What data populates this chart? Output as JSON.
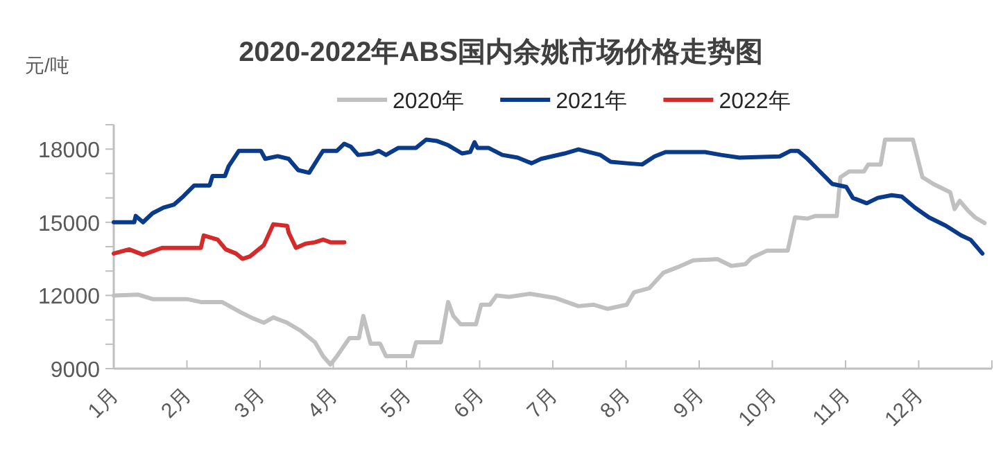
{
  "chart_data": {
    "type": "line",
    "title": "2020-2022年ABS国内余姚市场价格走势图",
    "ylabel": "元/吨",
    "legend": "top",
    "grid": false,
    "marker": "none",
    "line_style": "solid",
    "xlim": [
      1,
      13
    ],
    "xticks": [
      {
        "value": 1,
        "label": "1月"
      },
      {
        "value": 2,
        "label": "2月"
      },
      {
        "value": 3,
        "label": "3月"
      },
      {
        "value": 4,
        "label": "4月"
      },
      {
        "value": 5,
        "label": "5月"
      },
      {
        "value": 6,
        "label": "6月"
      },
      {
        "value": 7,
        "label": "7月"
      },
      {
        "value": 8,
        "label": "8月"
      },
      {
        "value": 9,
        "label": "9月"
      },
      {
        "value": 10,
        "label": "10月"
      },
      {
        "value": 11,
        "label": "11月"
      },
      {
        "value": 12,
        "label": "12月"
      },
      {
        "value": 13,
        "label": null
      }
    ],
    "ylim": [
      9000,
      19000
    ],
    "yticks": [
      9000,
      {
        "value": 10000,
        "label": null
      },
      {
        "value": 11000,
        "label": null
      },
      12000,
      {
        "value": 13000,
        "label": null
      },
      {
        "value": 14000,
        "label": null
      },
      15000,
      {
        "value": 16000,
        "label": null
      },
      {
        "value": 17000,
        "label": null
      },
      18000,
      {
        "value": 19000,
        "label": null
      }
    ],
    "series": [
      {
        "name": "2020年",
        "color": "#c0c0c0",
        "x": [
          1,
          1.34,
          1.53,
          2.0,
          2.19,
          2.48,
          2.72,
          2.91,
          3.05,
          3.18,
          3.37,
          3.56,
          3.75,
          3.86,
          3.96,
          4.05,
          4.22,
          4.35,
          4.41,
          4.51,
          4.64,
          4.72,
          5.08,
          5.13,
          5.47,
          5.57,
          5.64,
          5.74,
          5.95,
          6.02,
          6.14,
          6.23,
          6.4,
          6.69,
          7.03,
          7.35,
          7.56,
          7.75,
          8.01,
          8.11,
          8.32,
          8.51,
          8.7,
          8.92,
          9.25,
          9.44,
          9.63,
          9.72,
          9.93,
          10.21,
          10.31,
          10.48,
          10.59,
          10.88,
          10.93,
          11.05,
          11.25,
          11.31,
          11.48,
          11.54,
          11.92,
          12.05,
          12.2,
          12.43,
          12.49,
          12.56,
          12.67,
          12.77,
          12.9
        ],
        "values": [
          12000,
          12030,
          11850,
          11850,
          11730,
          11730,
          11330,
          11050,
          10880,
          11100,
          10880,
          10540,
          10080,
          9510,
          9170,
          9510,
          10250,
          10250,
          11160,
          10020,
          10020,
          9510,
          9510,
          10080,
          10080,
          11730,
          11160,
          10820,
          10820,
          11620,
          11620,
          12000,
          11940,
          12070,
          11900,
          11560,
          11620,
          11450,
          11620,
          12130,
          12300,
          12930,
          13150,
          13440,
          13490,
          13210,
          13280,
          13550,
          13840,
          13840,
          15200,
          15150,
          15260,
          15260,
          16850,
          17080,
          17080,
          17370,
          17370,
          18390,
          18390,
          16850,
          16570,
          16230,
          15540,
          15880,
          15490,
          15200,
          14970
        ]
      },
      {
        "name": "2021年",
        "color": "#0a3a8a",
        "x": [
          1,
          1.28,
          1.3,
          1.4,
          1.53,
          1.68,
          1.82,
          1.95,
          2.1,
          2.31,
          2.35,
          2.52,
          2.57,
          2.71,
          3.01,
          3.07,
          3.24,
          3.39,
          3.52,
          3.67,
          3.81,
          3.86,
          4.05,
          4.15,
          4.24,
          4.34,
          4.53,
          4.62,
          4.72,
          4.89,
          5.13,
          5.27,
          5.42,
          5.57,
          5.76,
          5.87,
          5.93,
          5.97,
          6.12,
          6.31,
          6.52,
          6.71,
          6.84,
          7.16,
          7.35,
          7.65,
          7.79,
          8.01,
          8.22,
          8.39,
          8.54,
          9.08,
          9.3,
          9.55,
          10.1,
          10.25,
          10.35,
          10.48,
          10.63,
          10.82,
          11.01,
          11.1,
          11.29,
          11.44,
          11.63,
          11.77,
          11.95,
          12.14,
          12.37,
          12.58,
          12.71,
          12.87
        ],
        "values": [
          15000,
          15000,
          15260,
          15000,
          15370,
          15600,
          15720,
          16060,
          16510,
          16510,
          16900,
          16900,
          17300,
          17930,
          17930,
          17600,
          17710,
          17600,
          17140,
          17030,
          17700,
          17930,
          17930,
          18220,
          18100,
          17760,
          17820,
          17930,
          17760,
          18050,
          18050,
          18390,
          18330,
          18160,
          17820,
          17880,
          18280,
          18050,
          18050,
          17760,
          17650,
          17420,
          17600,
          17820,
          17990,
          17760,
          17480,
          17420,
          17370,
          17700,
          17880,
          17880,
          17760,
          17650,
          17700,
          17930,
          17930,
          17600,
          17140,
          16570,
          16450,
          16000,
          15780,
          16000,
          16110,
          16050,
          15600,
          15200,
          14860,
          14460,
          14280,
          13720
        ]
      },
      {
        "name": "2022年",
        "color": "#d42a2a",
        "x": [
          1,
          1.21,
          1.4,
          1.66,
          2.19,
          2.23,
          2.42,
          2.53,
          2.67,
          2.76,
          2.86,
          3.05,
          3.18,
          3.37,
          3.39,
          3.49,
          3.62,
          3.75,
          3.86,
          3.96,
          4.15
        ],
        "values": [
          13720,
          13890,
          13670,
          13950,
          13950,
          14460,
          14290,
          13890,
          13720,
          13500,
          13600,
          14060,
          14920,
          14850,
          14580,
          13950,
          14120,
          14180,
          14290,
          14180,
          14180
        ]
      }
    ]
  }
}
